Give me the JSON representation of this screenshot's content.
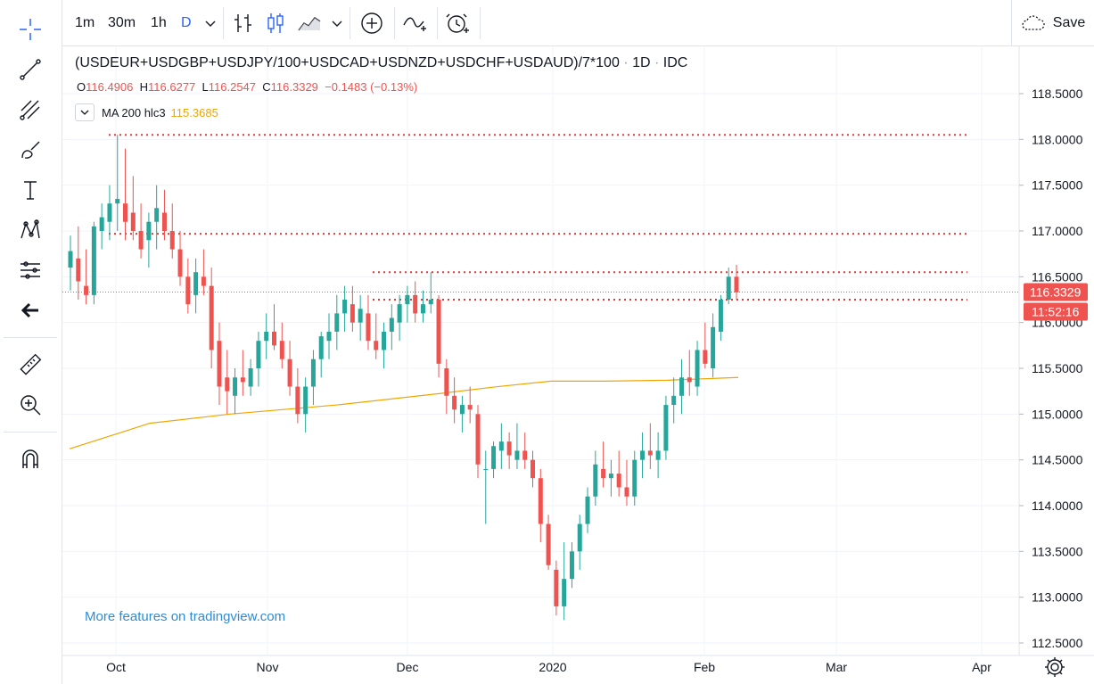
{
  "toolbar": {
    "timeframes": [
      "1m",
      "30m",
      "1h",
      "D"
    ],
    "active_timeframe": "D",
    "save_label": "Save",
    "icons": [
      "bar-style-icon",
      "candle-style-icon",
      "area-style-icon",
      "compare-add-icon",
      "indicators-icon",
      "alert-icon"
    ]
  },
  "left_toolbar": {
    "icons": [
      "crosshair-icon",
      "trend-line-icon",
      "pitchfork-icon",
      "brush-icon",
      "text-icon",
      "pattern-icon",
      "measure-icon",
      "back-arrow-icon",
      "ruler-icon",
      "zoom-icon",
      "magnet-icon"
    ]
  },
  "legend": {
    "symbol": "(USDEUR+USDGBP+USDJPY/100+USDCAD+USDNZD+USDCHF+USDAUD)/7*100",
    "sep": "·",
    "interval": "1D",
    "source": "IDC",
    "open_label": "O",
    "open": "116.4906",
    "high_label": "H",
    "high": "116.6277",
    "low_label": "L",
    "low": "116.2547",
    "close_label": "C",
    "close": "116.3329",
    "change": "−0.1483 (−0.13%)",
    "ma_name": "MA 200 hlc3",
    "ma_value": "115.3685"
  },
  "watermark": "More features on tradingview.com",
  "colors": {
    "up": "#26a69a",
    "down": "#ef5350",
    "ma": "#f0a500",
    "level": "#e53935",
    "accent": "#2962ff"
  },
  "chart_data": {
    "type": "candlestick",
    "y_ticks": [
      "118.5000",
      "118.0000",
      "117.5000",
      "117.0000",
      "116.5000",
      "116.0000",
      "115.5000",
      "115.0000",
      "114.5000",
      "114.0000",
      "113.5000",
      "113.0000",
      "112.5000"
    ],
    "y_range": [
      112.4,
      118.9
    ],
    "x_ticks": [
      "Oct",
      "Nov",
      "Dec",
      "2020",
      "Feb",
      "Mar",
      "Apr"
    ],
    "price_label": "116.3329",
    "countdown_label": "11:52:16",
    "horizontal_levels": [
      118.05,
      116.97,
      116.55,
      116.25
    ],
    "ohlc": [
      [
        116.6,
        116.95,
        116.35,
        116.78
      ],
      [
        116.7,
        117.05,
        116.25,
        116.45
      ],
      [
        116.4,
        116.8,
        116.2,
        116.3
      ],
      [
        116.3,
        117.1,
        116.2,
        117.05
      ],
      [
        117.0,
        117.3,
        116.8,
        117.15
      ],
      [
        117.1,
        117.5,
        116.9,
        117.3
      ],
      [
        117.3,
        118.05,
        117.0,
        117.35
      ],
      [
        117.3,
        117.9,
        116.9,
        117.1
      ],
      [
        117.2,
        117.6,
        116.9,
        117.0
      ],
      [
        117.0,
        117.3,
        116.7,
        116.8
      ],
      [
        116.9,
        117.2,
        116.6,
        117.1
      ],
      [
        117.1,
        117.5,
        116.8,
        117.25
      ],
      [
        117.2,
        117.45,
        116.9,
        117.0
      ],
      [
        117.0,
        117.3,
        116.7,
        116.8
      ],
      [
        116.8,
        117.0,
        116.4,
        116.5
      ],
      [
        116.5,
        116.7,
        116.1,
        116.2
      ],
      [
        116.3,
        116.7,
        116.1,
        116.55
      ],
      [
        116.5,
        116.8,
        116.3,
        116.4
      ],
      [
        116.4,
        116.6,
        115.5,
        115.7
      ],
      [
        115.8,
        116.0,
        115.1,
        115.3
      ],
      [
        115.4,
        115.7,
        115.0,
        115.25
      ],
      [
        115.2,
        115.5,
        115.0,
        115.4
      ],
      [
        115.4,
        115.7,
        115.2,
        115.35
      ],
      [
        115.3,
        115.6,
        115.2,
        115.5
      ],
      [
        115.5,
        115.9,
        115.3,
        115.8
      ],
      [
        115.8,
        116.1,
        115.6,
        115.9
      ],
      [
        115.9,
        116.2,
        115.7,
        115.75
      ],
      [
        115.8,
        116.0,
        115.5,
        115.6
      ],
      [
        115.6,
        115.8,
        115.2,
        115.3
      ],
      [
        115.3,
        115.5,
        114.9,
        115.0
      ],
      [
        115.0,
        115.4,
        114.8,
        115.3
      ],
      [
        115.3,
        115.7,
        115.1,
        115.6
      ],
      [
        115.6,
        115.9,
        115.4,
        115.85
      ],
      [
        115.8,
        116.1,
        115.6,
        115.9
      ],
      [
        115.9,
        116.3,
        115.7,
        116.1
      ],
      [
        116.1,
        116.4,
        115.9,
        116.25
      ],
      [
        116.2,
        116.4,
        115.9,
        116.0
      ],
      [
        116.0,
        116.3,
        115.8,
        116.15
      ],
      [
        116.1,
        116.3,
        115.7,
        115.8
      ],
      [
        115.8,
        116.1,
        115.6,
        115.7
      ],
      [
        115.7,
        116.0,
        115.5,
        115.9
      ],
      [
        115.9,
        116.2,
        115.7,
        116.05
      ],
      [
        116.0,
        116.3,
        115.8,
        116.2
      ],
      [
        116.2,
        116.4,
        116.0,
        116.3
      ],
      [
        116.3,
        116.45,
        116.0,
        116.1
      ],
      [
        116.1,
        116.35,
        116.0,
        116.2
      ],
      [
        116.2,
        116.55,
        116.1,
        116.25
      ],
      [
        116.25,
        116.3,
        115.4,
        115.55
      ],
      [
        115.5,
        115.6,
        115.0,
        115.2
      ],
      [
        115.2,
        115.4,
        114.9,
        115.05
      ],
      [
        115.0,
        115.2,
        114.8,
        115.1
      ],
      [
        115.1,
        115.3,
        114.9,
        115.05
      ],
      [
        115.0,
        115.1,
        114.3,
        114.45
      ],
      [
        114.4,
        114.6,
        113.8,
        114.4
      ],
      [
        114.4,
        114.7,
        114.3,
        114.65
      ],
      [
        114.6,
        114.9,
        114.4,
        114.7
      ],
      [
        114.7,
        114.8,
        114.4,
        114.55
      ],
      [
        114.5,
        114.9,
        114.4,
        114.6
      ],
      [
        114.6,
        114.8,
        114.4,
        114.5
      ],
      [
        114.5,
        114.6,
        114.2,
        114.3
      ],
      [
        114.3,
        114.4,
        113.6,
        113.8
      ],
      [
        113.8,
        113.9,
        113.3,
        113.35
      ],
      [
        113.3,
        113.4,
        112.8,
        112.9
      ],
      [
        112.9,
        113.6,
        112.75,
        113.2
      ],
      [
        113.2,
        113.6,
        113.1,
        113.5
      ],
      [
        113.5,
        113.9,
        113.3,
        113.8
      ],
      [
        113.8,
        114.2,
        113.7,
        114.1
      ],
      [
        114.1,
        114.6,
        114.0,
        114.45
      ],
      [
        114.4,
        114.7,
        114.2,
        114.3
      ],
      [
        114.3,
        114.5,
        114.1,
        114.35
      ],
      [
        114.35,
        114.6,
        114.1,
        114.2
      ],
      [
        114.2,
        114.5,
        114.0,
        114.1
      ],
      [
        114.1,
        114.6,
        114.0,
        114.5
      ],
      [
        114.5,
        114.8,
        114.3,
        114.6
      ],
      [
        114.6,
        114.9,
        114.4,
        114.55
      ],
      [
        114.5,
        114.8,
        114.3,
        114.6
      ],
      [
        114.6,
        115.2,
        114.5,
        115.1
      ],
      [
        115.1,
        115.4,
        114.9,
        115.2
      ],
      [
        115.2,
        115.6,
        115.0,
        115.4
      ],
      [
        115.4,
        115.7,
        115.2,
        115.35
      ],
      [
        115.3,
        115.8,
        115.2,
        115.7
      ],
      [
        115.7,
        116.0,
        115.5,
        115.55
      ],
      [
        115.5,
        116.1,
        115.4,
        115.95
      ],
      [
        115.9,
        116.3,
        115.8,
        116.25
      ],
      [
        116.25,
        116.6,
        116.2,
        116.5
      ],
      [
        116.5,
        116.63,
        116.25,
        116.33
      ]
    ],
    "ma": [
      [
        0,
        114.62
      ],
      [
        60,
        114.9
      ],
      [
        120,
        115.0
      ],
      [
        200,
        115.1
      ],
      [
        280,
        115.23
      ],
      [
        320,
        115.3
      ],
      [
        360,
        115.36
      ],
      [
        400,
        115.36
      ],
      [
        447,
        115.37
      ],
      [
        500,
        115.4
      ]
    ]
  }
}
